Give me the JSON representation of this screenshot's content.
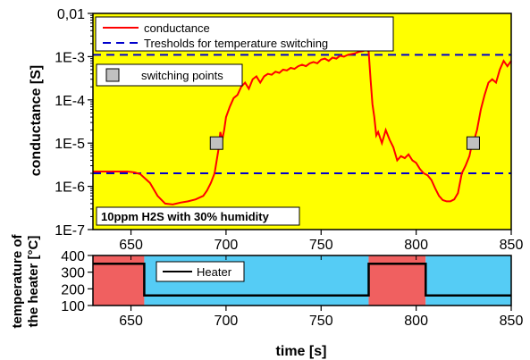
{
  "chart_data": [
    {
      "type": "line",
      "background_color": "#ffff00",
      "xlim": [
        630,
        850
      ],
      "x_ticks": [
        650,
        700,
        750,
        800,
        850
      ],
      "y_scale": "log",
      "ylim": [
        1e-07,
        0.01
      ],
      "y_ticks": [
        {
          "value": 1e-07,
          "label": "1E-7"
        },
        {
          "value": 1e-06,
          "label": "1E-6"
        },
        {
          "value": 1e-05,
          "label": "1E-5"
        },
        {
          "value": 0.0001,
          "label": "1E-4"
        },
        {
          "value": 0.001,
          "label": "1E-3"
        },
        {
          "value": 0.01,
          "label": "0,01"
        }
      ],
      "ylabel": "conductance  [S]",
      "legend": [
        {
          "label": "conductance",
          "color": "#ff0000",
          "style": "solid"
        },
        {
          "label": "Tresholds for temperature switching",
          "color": "#0000cc",
          "style": "dashed"
        }
      ],
      "legend2": {
        "label": "switching points",
        "marker": "square",
        "color": "#c0c0c0"
      },
      "annotation": "10ppm H2S with 30% humidity",
      "series": [
        {
          "name": "conductance",
          "color": "#ff0000",
          "x": [
            630,
            648,
            652,
            655,
            660,
            664,
            668,
            672,
            676,
            680,
            684,
            688,
            690,
            692,
            694,
            696,
            697,
            698,
            699,
            700,
            702,
            704,
            706,
            708,
            710,
            712,
            714,
            716,
            718,
            720,
            722,
            724,
            726,
            728,
            730,
            732,
            734,
            736,
            738,
            740,
            742,
            744,
            746,
            748,
            750,
            752,
            754,
            756,
            758,
            760,
            762,
            764,
            766,
            768,
            770,
            772,
            774,
            775,
            776,
            777,
            778,
            779,
            780,
            782,
            784,
            786,
            788,
            790,
            792,
            794,
            796,
            798,
            800,
            802,
            804,
            806,
            808,
            810,
            812,
            814,
            816,
            818,
            820,
            822,
            824,
            826,
            828,
            829,
            830,
            832,
            834,
            836,
            838,
            840,
            842,
            844,
            846,
            848,
            850
          ],
          "y": [
            2.2e-06,
            2.2e-06,
            2.1e-06,
            1.9e-06,
            1.2e-06,
            6e-07,
            4e-07,
            3.8e-07,
            4.2e-07,
            4.5e-07,
            5e-07,
            6e-07,
            8e-07,
            1.2e-06,
            2e-06,
            7e-06,
            1.8e-05,
            1.2e-05,
            2e-05,
            4e-05,
            7e-05,
            0.00011,
            0.00013,
            0.0002,
            0.00025,
            0.00018,
            0.0003,
            0.00035,
            0.00025,
            0.00035,
            0.0004,
            0.00038,
            0.00045,
            0.00042,
            0.0005,
            0.00048,
            0.00055,
            0.00052,
            0.0006,
            0.00065,
            0.0006,
            0.0007,
            0.00075,
            0.0007,
            0.00085,
            0.0009,
            0.0008,
            0.00095,
            0.0009,
            0.00105,
            0.001,
            0.0011,
            0.00115,
            0.0012,
            0.0013,
            0.00135,
            0.00145,
            0.0013,
            0.0003,
            8e-05,
            4e-05,
            1.5e-05,
            1.8e-05,
            1e-05,
            2e-05,
            1.2e-05,
            8e-06,
            4e-06,
            5e-06,
            4.5e-06,
            5.5e-06,
            4e-06,
            3.5e-06,
            2.5e-06,
            2e-06,
            1.8e-06,
            1.4e-06,
            9e-07,
            6e-07,
            4.8e-07,
            4.5e-07,
            4.5e-07,
            5e-07,
            7e-07,
            2e-06,
            3e-06,
            5e-06,
            8e-06,
            1e-05,
            2e-05,
            6e-05,
            0.00013,
            0.00025,
            0.0003,
            0.00025,
            0.0005,
            0.0008,
            0.0006,
            0.0008
          ]
        },
        {
          "name": "Tresholds for temperature switching",
          "color": "#0000cc",
          "style": "dashed",
          "y_constant": [
            0.0011,
            2e-06
          ]
        }
      ],
      "switching_points": [
        {
          "x": 695,
          "y": 1e-05
        },
        {
          "x": 830,
          "y": 1e-05
        }
      ]
    },
    {
      "type": "line",
      "xlim": [
        630,
        850
      ],
      "x_ticks": [
        650,
        700,
        750,
        800,
        850
      ],
      "ylim": [
        100,
        400
      ],
      "y_ticks": [
        100,
        200,
        300,
        400
      ],
      "ylabel": [
        "temperature of",
        "the heater [°C]"
      ],
      "xlabel": "time [s]",
      "legend": [
        {
          "label": "Heater",
          "color": "#000000",
          "style": "solid"
        }
      ],
      "regions": [
        {
          "x": [
            630,
            657
          ],
          "color": "#f06060"
        },
        {
          "x": [
            657,
            775
          ],
          "color": "#55ccf5"
        },
        {
          "x": [
            775,
            805
          ],
          "color": "#f06060"
        },
        {
          "x": [
            805,
            850
          ],
          "color": "#55ccf5"
        }
      ],
      "series": [
        {
          "name": "Heater",
          "color": "#000000",
          "x": [
            630,
            657,
            657,
            775,
            775,
            805,
            805,
            850
          ],
          "y": [
            350,
            350,
            160,
            160,
            350,
            350,
            160,
            160
          ]
        }
      ]
    }
  ]
}
